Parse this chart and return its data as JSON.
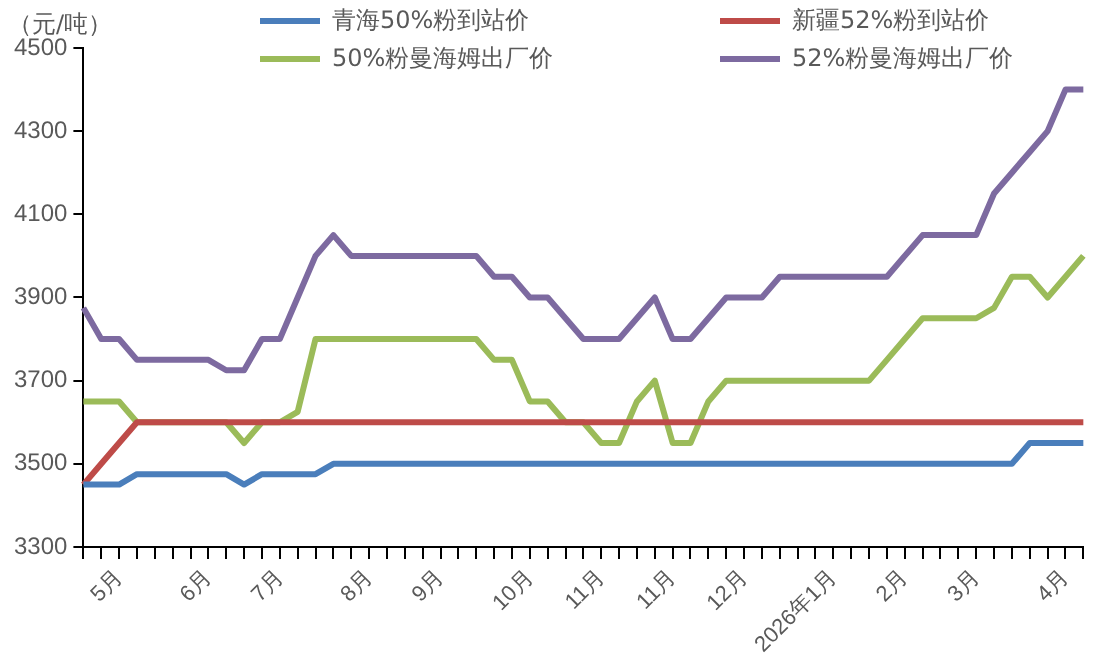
{
  "chart_data": {
    "type": "line",
    "annotations": [
      "（元/吨）"
    ],
    "categories": [
      null,
      null,
      "5月",
      null,
      null,
      null,
      null,
      "6月",
      null,
      null,
      null,
      "7月",
      null,
      null,
      null,
      null,
      "8月",
      null,
      null,
      null,
      "9月",
      null,
      null,
      null,
      null,
      "10月",
      null,
      null,
      null,
      "11月",
      null,
      null,
      null,
      "11月",
      null,
      null,
      null,
      "12月",
      null,
      null,
      null,
      null,
      "2026年1月",
      null,
      null,
      null,
      "2月",
      null,
      null,
      null,
      "3月",
      null,
      null,
      null,
      null,
      "4月",
      null
    ],
    "series": [
      {
        "name": "青海50%粉到站价",
        "color": "#4a7ebb",
        "values": [
          3450,
          3450,
          3450,
          3475,
          3475,
          3475,
          3475,
          3475,
          3475,
          3450,
          3475,
          3475,
          3475,
          3475,
          3500,
          3500,
          3500,
          3500,
          3500,
          3500,
          3500,
          3500,
          3500,
          3500,
          3500,
          3500,
          3500,
          3500,
          3500,
          3500,
          3500,
          3500,
          3500,
          3500,
          3500,
          3500,
          3500,
          3500,
          3500,
          3500,
          3500,
          3500,
          3500,
          3500,
          3500,
          3500,
          3500,
          3500,
          3500,
          3500,
          3500,
          3500,
          3500,
          3550,
          3550,
          3550,
          3550
        ]
      },
      {
        "name": "新疆52%粉到站价",
        "color": "#be4b48",
        "values": [
          3450,
          3500,
          3550,
          3600,
          3600,
          3600,
          3600,
          3600,
          3600,
          3600,
          3600,
          3600,
          3600,
          3600,
          3600,
          3600,
          3600,
          3600,
          3600,
          3600,
          3600,
          3600,
          3600,
          3600,
          3600,
          3600,
          3600,
          3600,
          3600,
          3600,
          3600,
          3600,
          3600,
          3600,
          3600,
          3600,
          3600,
          3600,
          3600,
          3600,
          3600,
          3600,
          3600,
          3600,
          3600,
          3600,
          3600,
          3600,
          3600,
          3600,
          3600,
          3600,
          3600,
          3600,
          3600,
          3600,
          3600
        ]
      },
      {
        "name": "50%粉曼海姆出厂价",
        "color": "#9bbb59",
        "values": [
          3650,
          3650,
          3650,
          3600,
          3600,
          3600,
          3600,
          3600,
          3600,
          3550,
          3600,
          3600,
          3625,
          3800,
          3800,
          3800,
          3800,
          3800,
          3800,
          3800,
          3800,
          3800,
          3800,
          3750,
          3750,
          3650,
          3650,
          3600,
          3600,
          3550,
          3550,
          3650,
          3700,
          3550,
          3550,
          3650,
          3700,
          3700,
          3700,
          3700,
          3700,
          3700,
          3700,
          3700,
          3700,
          3750,
          3800,
          3850,
          3850,
          3850,
          3850,
          3875,
          3950,
          3950,
          3900,
          3950,
          4000
        ]
      },
      {
        "name": "52%粉曼海姆出厂价",
        "color": "#7d6aa0",
        "values": [
          3875,
          3800,
          3800,
          3750,
          3750,
          3750,
          3750,
          3750,
          3725,
          3725,
          3800,
          3800,
          3900,
          4000,
          4050,
          4000,
          4000,
          4000,
          4000,
          4000,
          4000,
          4000,
          4000,
          3950,
          3950,
          3900,
          3900,
          3850,
          3800,
          3800,
          3800,
          3850,
          3900,
          3800,
          3800,
          3850,
          3900,
          3900,
          3900,
          3950,
          3950,
          3950,
          3950,
          3950,
          3950,
          3950,
          4000,
          4050,
          4050,
          4050,
          4050,
          4150,
          4200,
          4250,
          4300,
          4400,
          4400
        ]
      }
    ],
    "ylim": [
      3300,
      4500
    ],
    "yticks": [
      3300,
      3500,
      3700,
      3900,
      4100,
      4300,
      4500
    ],
    "grid": false,
    "legend": "top",
    "marker": "none",
    "line_style": "solid"
  }
}
